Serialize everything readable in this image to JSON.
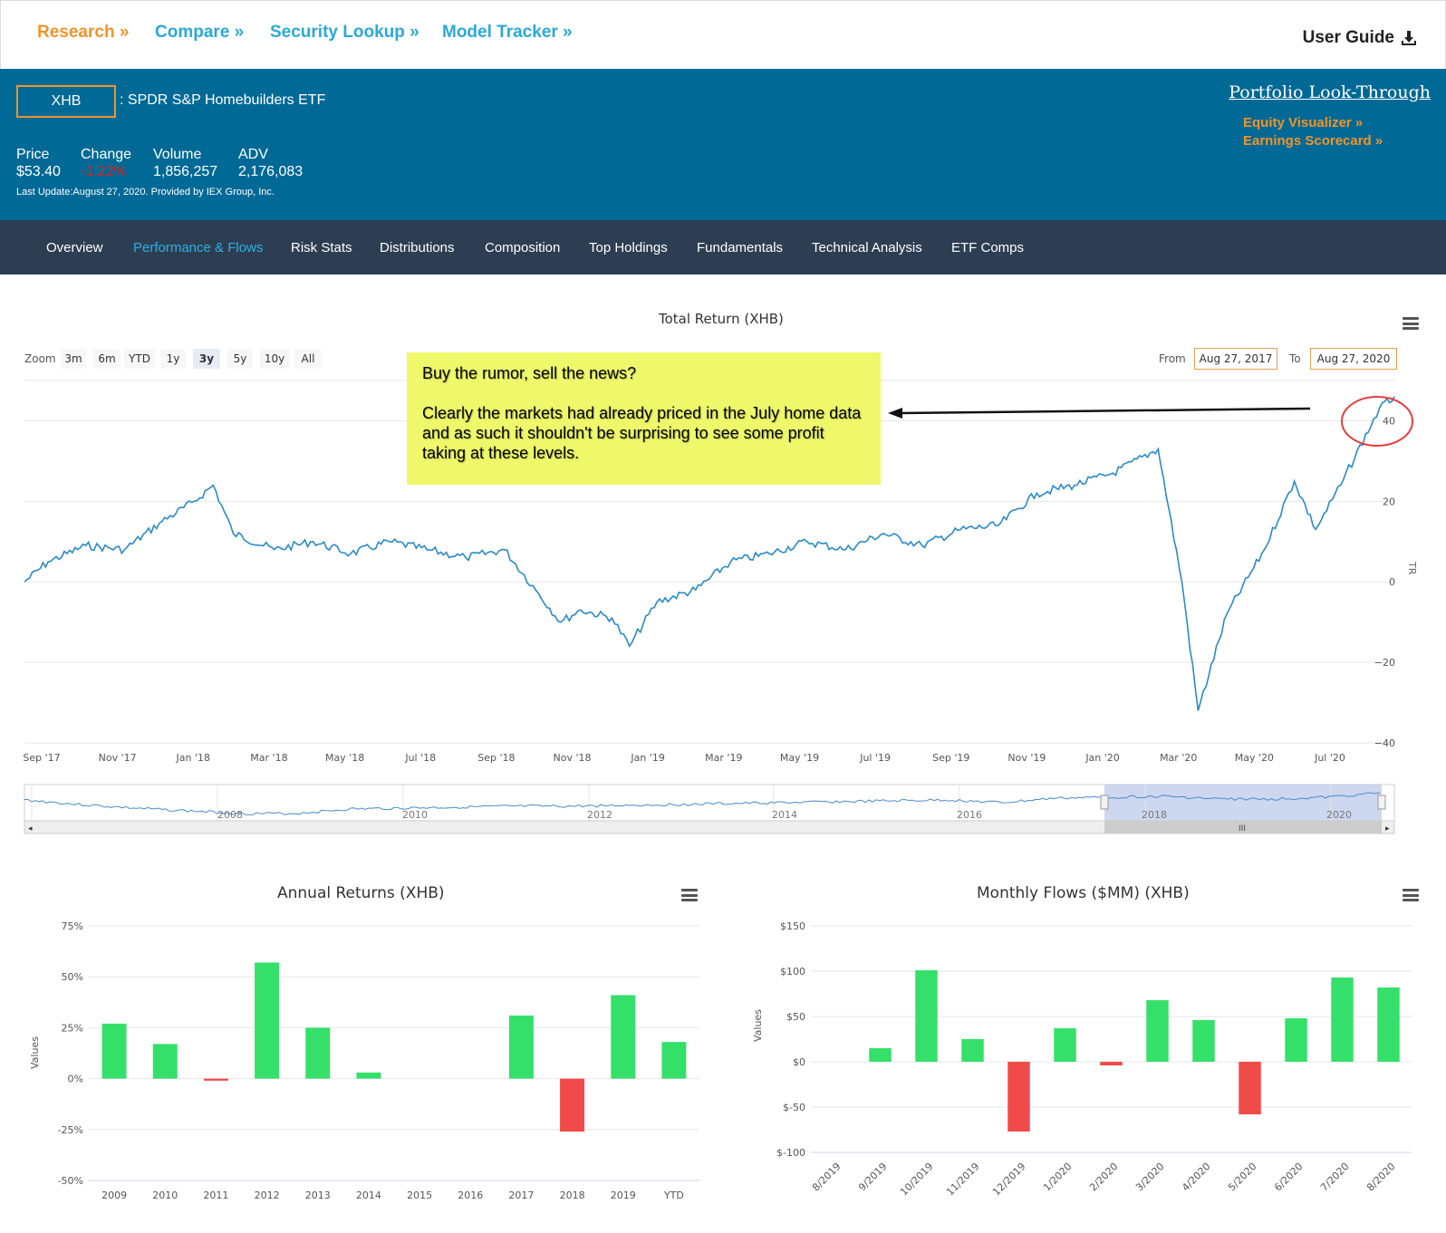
{
  "topnav": {
    "research": "Research »",
    "compare": "Compare »",
    "security_lookup": "Security Lookup »",
    "model_tracker": "Model Tracker »",
    "user_guide": "User Guide"
  },
  "fund": {
    "ticker": "XHB",
    "name": ": SPDR S&P Homebuilders ETF",
    "price_label": "Price",
    "price": "$53.40",
    "change_label": "Change",
    "change": "-1.22%",
    "volume_label": "Volume",
    "volume": "1,856,257",
    "adv_label": "ADV",
    "adv": "2,176,083",
    "last_update": "Last Update:August 27, 2020. Provided by IEX Group, Inc."
  },
  "side_links": {
    "portfolio_look_through": "Portfolio Look-Through",
    "equity_visualizer": "Equity Visualizer »",
    "earnings_scorecard": "Earnings Scorecard »"
  },
  "tabs": [
    "Overview",
    "Performance & Flows",
    "Risk Stats",
    "Distributions",
    "Composition",
    "Top Holdings",
    "Fundamentals",
    "Technical Analysis",
    "ETF Comps"
  ],
  "active_tab": "Performance & Flows",
  "total_return": {
    "zoom_label": "Zoom",
    "zoom_buttons": [
      "3m",
      "6m",
      "YTD",
      "1y",
      "3y",
      "5y",
      "10y",
      "All"
    ],
    "from_label": "From",
    "from": "Aug 27, 2017",
    "to_label": "To",
    "to": "Aug 27, 2020",
    "navigator_labels": [
      "2008",
      "2010",
      "2012",
      "2014",
      "2016",
      "2018",
      "2020"
    ]
  },
  "annotation": {
    "line1": "Buy the rumor, sell the news?",
    "line2": "Clearly the markets had already priced in the July home data and as such it shouldn't be surprising to see some profit taking at these levels."
  },
  "chart_data": [
    {
      "type": "line",
      "title": "Total Return (XHB)",
      "ylabel": "TR",
      "ylim": [
        -40,
        50
      ],
      "yticks": [
        -40,
        -20,
        0,
        20,
        40
      ],
      "xtick_labels": [
        "Sep '17",
        "Nov '17",
        "Jan '18",
        "Mar '18",
        "May '18",
        "Jul '18",
        "Sep '18",
        "Nov '18",
        "Jan '19",
        "Mar '19",
        "May '19",
        "Jul '19",
        "Sep '19",
        "Nov '19",
        "Jan '20",
        "Mar '20",
        "May '20",
        "Jul '20"
      ],
      "x": [
        "2017-08-27",
        "2017-09-15",
        "2017-10-15",
        "2017-11-15",
        "2017-12-15",
        "2018-01-10",
        "2018-01-25",
        "2018-02-10",
        "2018-03-15",
        "2018-04-15",
        "2018-05-15",
        "2018-06-15",
        "2018-07-15",
        "2018-08-15",
        "2018-09-15",
        "2018-10-10",
        "2018-10-30",
        "2018-11-15",
        "2018-12-10",
        "2018-12-24",
        "2019-01-15",
        "2019-02-15",
        "2019-03-15",
        "2019-04-15",
        "2019-05-15",
        "2019-06-15",
        "2019-07-15",
        "2019-08-15",
        "2019-09-15",
        "2019-10-15",
        "2019-11-15",
        "2019-12-15",
        "2020-01-15",
        "2020-02-20",
        "2020-03-10",
        "2020-03-23",
        "2020-04-15",
        "2020-05-15",
        "2020-06-08",
        "2020-06-25",
        "2020-07-15",
        "2020-08-15",
        "2020-08-27"
      ],
      "y": [
        0,
        5,
        9,
        8,
        15,
        20,
        24,
        12,
        8,
        10,
        7,
        10,
        8,
        6,
        8,
        -2,
        -10,
        -7,
        -9,
        -16,
        -5,
        -2,
        5,
        7,
        10,
        8,
        12,
        9,
        13,
        14,
        22,
        24,
        27,
        33,
        0,
        -32,
        -8,
        8,
        25,
        13,
        24,
        43,
        46
      ]
    },
    {
      "type": "bar",
      "title": "Annual Returns (XHB)",
      "ylabel": "Values",
      "ylim": [
        -50,
        75
      ],
      "ytick_labels": [
        "75%",
        "50%",
        "25%",
        "0%",
        "-25%",
        "-50%"
      ],
      "categories": [
        "2009",
        "2010",
        "2011",
        "2012",
        "2013",
        "2014",
        "2015",
        "2016",
        "2017",
        "2018",
        "2019",
        "YTD"
      ],
      "values": [
        27,
        17,
        -1,
        57,
        25,
        3,
        0,
        0,
        31,
        -26,
        41,
        18
      ],
      "colors": {
        "positive": "#35e06a",
        "negative": "#f04a4a"
      }
    },
    {
      "type": "bar",
      "title": "Monthly Flows ($MM) (XHB)",
      "ylabel": "Values",
      "ylim": [
        -100,
        150
      ],
      "ytick_labels": [
        "$150",
        "$100",
        "$50",
        "$0",
        "$-50",
        "$-100"
      ],
      "categories": [
        "8/2019",
        "9/2019",
        "10/2019",
        "11/2019",
        "12/2019",
        "1/2020",
        "2/2020",
        "3/2020",
        "4/2020",
        "5/2020",
        "6/2020",
        "7/2020",
        "8/2020"
      ],
      "values": [
        0,
        15,
        101,
        25,
        -77,
        37,
        -4,
        68,
        46,
        -58,
        48,
        93,
        82
      ],
      "colors": {
        "positive": "#35e06a",
        "negative": "#f04a4a"
      }
    }
  ]
}
